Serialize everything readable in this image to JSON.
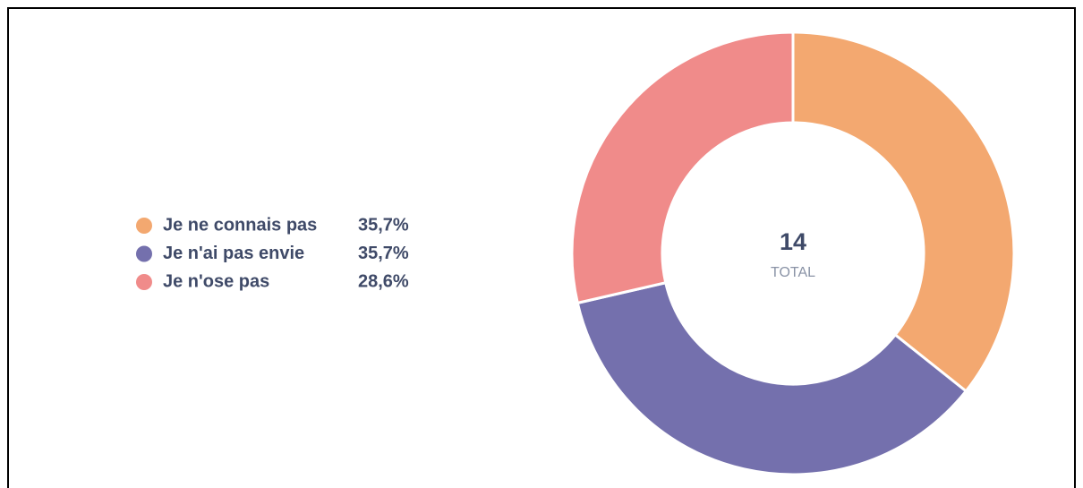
{
  "chart_data": {
    "type": "donut",
    "categories": [
      "Je ne connais pas",
      "Je n'ai pas envie",
      "Je n'ose pas"
    ],
    "values": [
      35.7,
      35.7,
      28.6
    ],
    "value_labels": [
      "35,7%",
      "35,7%",
      "28,6%"
    ],
    "colors": [
      "#f3a870",
      "#7470ad",
      "#f08b8a"
    ],
    "total": 14,
    "total_label": "TOTAL"
  }
}
